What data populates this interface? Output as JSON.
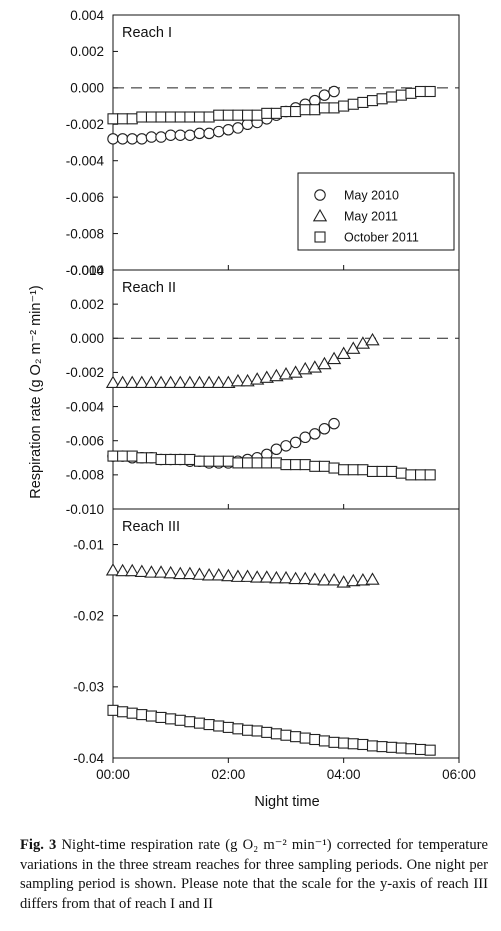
{
  "chart_data": {
    "type": "scatter",
    "shared_xlabel": "Night time",
    "shared_ylabel": "Respiration rate (g O₂ m⁻² min⁻¹)",
    "x_tick_labels": [
      "00:00",
      "02:00",
      "04:00",
      "06:00"
    ],
    "xlim_hours": [
      0,
      6
    ],
    "panels": [
      {
        "title": "Reach I",
        "ylim": [
          -0.01,
          0.004
        ],
        "yticks": [
          0.004,
          0.002,
          0.0,
          -0.002,
          -0.004,
          -0.006,
          -0.008,
          -0.01
        ],
        "ytick_labels": [
          "0.004",
          "0.002",
          "0.000",
          "-0.002",
          "-0.004",
          "-0.006",
          "-0.008",
          "-0.010"
        ],
        "zero_line": true,
        "legend": {
          "placement": "lower-right",
          "entries": [
            {
              "label": "May 2010",
              "marker": "circle"
            },
            {
              "label": "May 2011",
              "marker": "triangle"
            },
            {
              "label": "October 2011",
              "marker": "square"
            }
          ]
        },
        "series": [
          {
            "name": "May 2010",
            "marker": "circle",
            "x": [
              "00:00",
              "00:10",
              "00:20",
              "00:30",
              "00:40",
              "00:50",
              "01:00",
              "01:10",
              "01:20",
              "01:30",
              "01:40",
              "01:50",
              "02:00",
              "02:10",
              "02:20",
              "02:30",
              "02:40",
              "02:50",
              "03:00",
              "03:10",
              "03:20",
              "03:30",
              "03:40",
              "03:50"
            ],
            "y": [
              -0.0028,
              -0.0028,
              -0.0028,
              -0.0028,
              -0.0027,
              -0.0027,
              -0.0026,
              -0.0026,
              -0.0026,
              -0.0025,
              -0.0025,
              -0.0024,
              -0.0023,
              -0.0022,
              -0.002,
              -0.0019,
              -0.0017,
              -0.0015,
              -0.0013,
              -0.0011,
              -0.0009,
              -0.0007,
              -0.0004,
              -0.0002
            ]
          },
          {
            "name": "October 2011",
            "marker": "square",
            "x": [
              "00:00",
              "00:10",
              "00:20",
              "00:30",
              "00:40",
              "00:50",
              "01:00",
              "01:10",
              "01:20",
              "01:30",
              "01:40",
              "01:50",
              "02:00",
              "02:10",
              "02:20",
              "02:30",
              "02:40",
              "02:50",
              "03:00",
              "03:10",
              "03:20",
              "03:30",
              "03:40",
              "03:50",
              "04:00",
              "04:10",
              "04:20",
              "04:30",
              "04:40",
              "04:50",
              "05:00",
              "05:10",
              "05:20",
              "05:30"
            ],
            "y": [
              -0.0017,
              -0.0017,
              -0.0017,
              -0.0016,
              -0.0016,
              -0.0016,
              -0.0016,
              -0.0016,
              -0.0016,
              -0.0016,
              -0.0016,
              -0.0015,
              -0.0015,
              -0.0015,
              -0.0015,
              -0.0015,
              -0.0014,
              -0.0014,
              -0.0013,
              -0.0013,
              -0.0012,
              -0.0012,
              -0.0011,
              -0.0011,
              -0.001,
              -0.0009,
              -0.0008,
              -0.0007,
              -0.0006,
              -0.0005,
              -0.0004,
              -0.0003,
              -0.0002,
              -0.0002
            ]
          }
        ]
      },
      {
        "title": "Reach II",
        "ylim": [
          -0.01,
          0.004
        ],
        "yticks": [
          0.004,
          0.002,
          0.0,
          -0.002,
          -0.004,
          -0.006,
          -0.008,
          -0.01
        ],
        "ytick_labels": [
          "0.004",
          "0.002",
          "0.000",
          "-0.002",
          "-0.004",
          "-0.006",
          "-0.008",
          "-0.010"
        ],
        "zero_line": true,
        "series": [
          {
            "name": "May 2011",
            "marker": "triangle",
            "x": [
              "00:00",
              "00:10",
              "00:20",
              "00:30",
              "00:40",
              "00:50",
              "01:00",
              "01:10",
              "01:20",
              "01:30",
              "01:40",
              "01:50",
              "02:00",
              "02:10",
              "02:20",
              "02:30",
              "02:40",
              "02:50",
              "03:00",
              "03:10",
              "03:20",
              "03:30",
              "03:40",
              "03:50",
              "04:00",
              "04:10",
              "04:20",
              "04:30"
            ],
            "y": [
              -0.0026,
              -0.0026,
              -0.0026,
              -0.0026,
              -0.0026,
              -0.0026,
              -0.0026,
              -0.0026,
              -0.0026,
              -0.0026,
              -0.0026,
              -0.0026,
              -0.0026,
              -0.0025,
              -0.0025,
              -0.0024,
              -0.0023,
              -0.0022,
              -0.0021,
              -0.002,
              -0.0018,
              -0.0017,
              -0.0015,
              -0.0012,
              -0.0009,
              -0.0006,
              -0.0003,
              -0.0001
            ]
          },
          {
            "name": "May 2010",
            "marker": "circle",
            "x": [
              "00:00",
              "00:10",
              "00:20",
              "00:30",
              "00:40",
              "00:50",
              "01:00",
              "01:10",
              "01:20",
              "01:30",
              "01:40",
              "01:50",
              "02:00",
              "02:10",
              "02:20",
              "02:30",
              "02:40",
              "02:50",
              "03:00",
              "03:10",
              "03:20",
              "03:30",
              "03:40",
              "03:50"
            ],
            "y": [
              -0.0069,
              -0.0069,
              -0.007,
              -0.007,
              -0.007,
              -0.0071,
              -0.0071,
              -0.0071,
              -0.0072,
              -0.0072,
              -0.0073,
              -0.0073,
              -0.0073,
              -0.0072,
              -0.0071,
              -0.007,
              -0.0068,
              -0.0065,
              -0.0063,
              -0.0061,
              -0.0058,
              -0.0056,
              -0.0053,
              -0.005
            ]
          },
          {
            "name": "October 2011",
            "marker": "square",
            "x": [
              "00:00",
              "00:10",
              "00:20",
              "00:30",
              "00:40",
              "00:50",
              "01:00",
              "01:10",
              "01:20",
              "01:30",
              "01:40",
              "01:50",
              "02:00",
              "02:10",
              "02:20",
              "02:30",
              "02:40",
              "02:50",
              "03:00",
              "03:10",
              "03:20",
              "03:30",
              "03:40",
              "03:50",
              "04:00",
              "04:10",
              "04:20",
              "04:30",
              "04:40",
              "04:50",
              "05:00",
              "05:10",
              "05:20",
              "05:30"
            ],
            "y": [
              -0.0069,
              -0.0069,
              -0.0069,
              -0.007,
              -0.007,
              -0.0071,
              -0.0071,
              -0.0071,
              -0.0071,
              -0.0072,
              -0.0072,
              -0.0072,
              -0.0072,
              -0.0073,
              -0.0073,
              -0.0073,
              -0.0073,
              -0.0073,
              -0.0074,
              -0.0074,
              -0.0074,
              -0.0075,
              -0.0075,
              -0.0076,
              -0.0077,
              -0.0077,
              -0.0077,
              -0.0078,
              -0.0078,
              -0.0078,
              -0.0079,
              -0.008,
              -0.008,
              -0.008
            ]
          }
        ]
      },
      {
        "title": "Reach III",
        "ylim": [
          -0.04,
          -0.005
        ],
        "yticks": [
          -0.01,
          -0.02,
          -0.03,
          -0.04
        ],
        "ytick_labels": [
          "-0.01",
          "-0.02",
          "-0.03",
          "-0.04"
        ],
        "zero_line": false,
        "series": [
          {
            "name": "May 2011",
            "marker": "triangle",
            "x": [
              "00:00",
              "00:10",
              "00:20",
              "00:30",
              "00:40",
              "00:50",
              "01:00",
              "01:10",
              "01:20",
              "01:30",
              "01:40",
              "01:50",
              "02:00",
              "02:10",
              "02:20",
              "02:30",
              "02:40",
              "02:50",
              "03:00",
              "03:10",
              "03:20",
              "03:30",
              "03:40",
              "03:50",
              "04:00",
              "04:10",
              "04:20",
              "04:30"
            ],
            "y": [
              -0.0136,
              -0.0137,
              -0.0137,
              -0.0138,
              -0.0139,
              -0.0139,
              -0.014,
              -0.0141,
              -0.0141,
              -0.0142,
              -0.0143,
              -0.0143,
              -0.0144,
              -0.0145,
              -0.0145,
              -0.0146,
              -0.0146,
              -0.0147,
              -0.0147,
              -0.0148,
              -0.0148,
              -0.0149,
              -0.015,
              -0.015,
              -0.0153,
              -0.0151,
              -0.015,
              -0.0149
            ]
          },
          {
            "name": "October 2011",
            "marker": "square",
            "x": [
              "00:00",
              "00:10",
              "00:20",
              "00:30",
              "00:40",
              "00:50",
              "01:00",
              "01:10",
              "01:20",
              "01:30",
              "01:40",
              "01:50",
              "02:00",
              "02:10",
              "02:20",
              "02:30",
              "02:40",
              "02:50",
              "03:00",
              "03:10",
              "03:20",
              "03:30",
              "03:40",
              "03:50",
              "04:00",
              "04:10",
              "04:20",
              "04:30",
              "04:40",
              "04:50",
              "05:00",
              "05:10",
              "05:20",
              "05:30"
            ],
            "y": [
              -0.0333,
              -0.0335,
              -0.0337,
              -0.0339,
              -0.0341,
              -0.0343,
              -0.0345,
              -0.0347,
              -0.0349,
              -0.0351,
              -0.0353,
              -0.0355,
              -0.0357,
              -0.0359,
              -0.0361,
              -0.0362,
              -0.0364,
              -0.0366,
              -0.0368,
              -0.037,
              -0.0372,
              -0.0374,
              -0.0376,
              -0.0378,
              -0.0379,
              -0.038,
              -0.0381,
              -0.0383,
              -0.0384,
              -0.0385,
              -0.0386,
              -0.0387,
              -0.0388,
              -0.0389
            ]
          }
        ]
      }
    ]
  },
  "caption": {
    "label": "Fig. 3",
    "text": "Night-time respiration rate (g O₂ m⁻² min⁻¹) corrected for temperature variations in the three stream reaches for three sampling periods. One night per sampling period is shown. Please note that the scale for the y-axis of reach III differs from that of reach I and II"
  }
}
